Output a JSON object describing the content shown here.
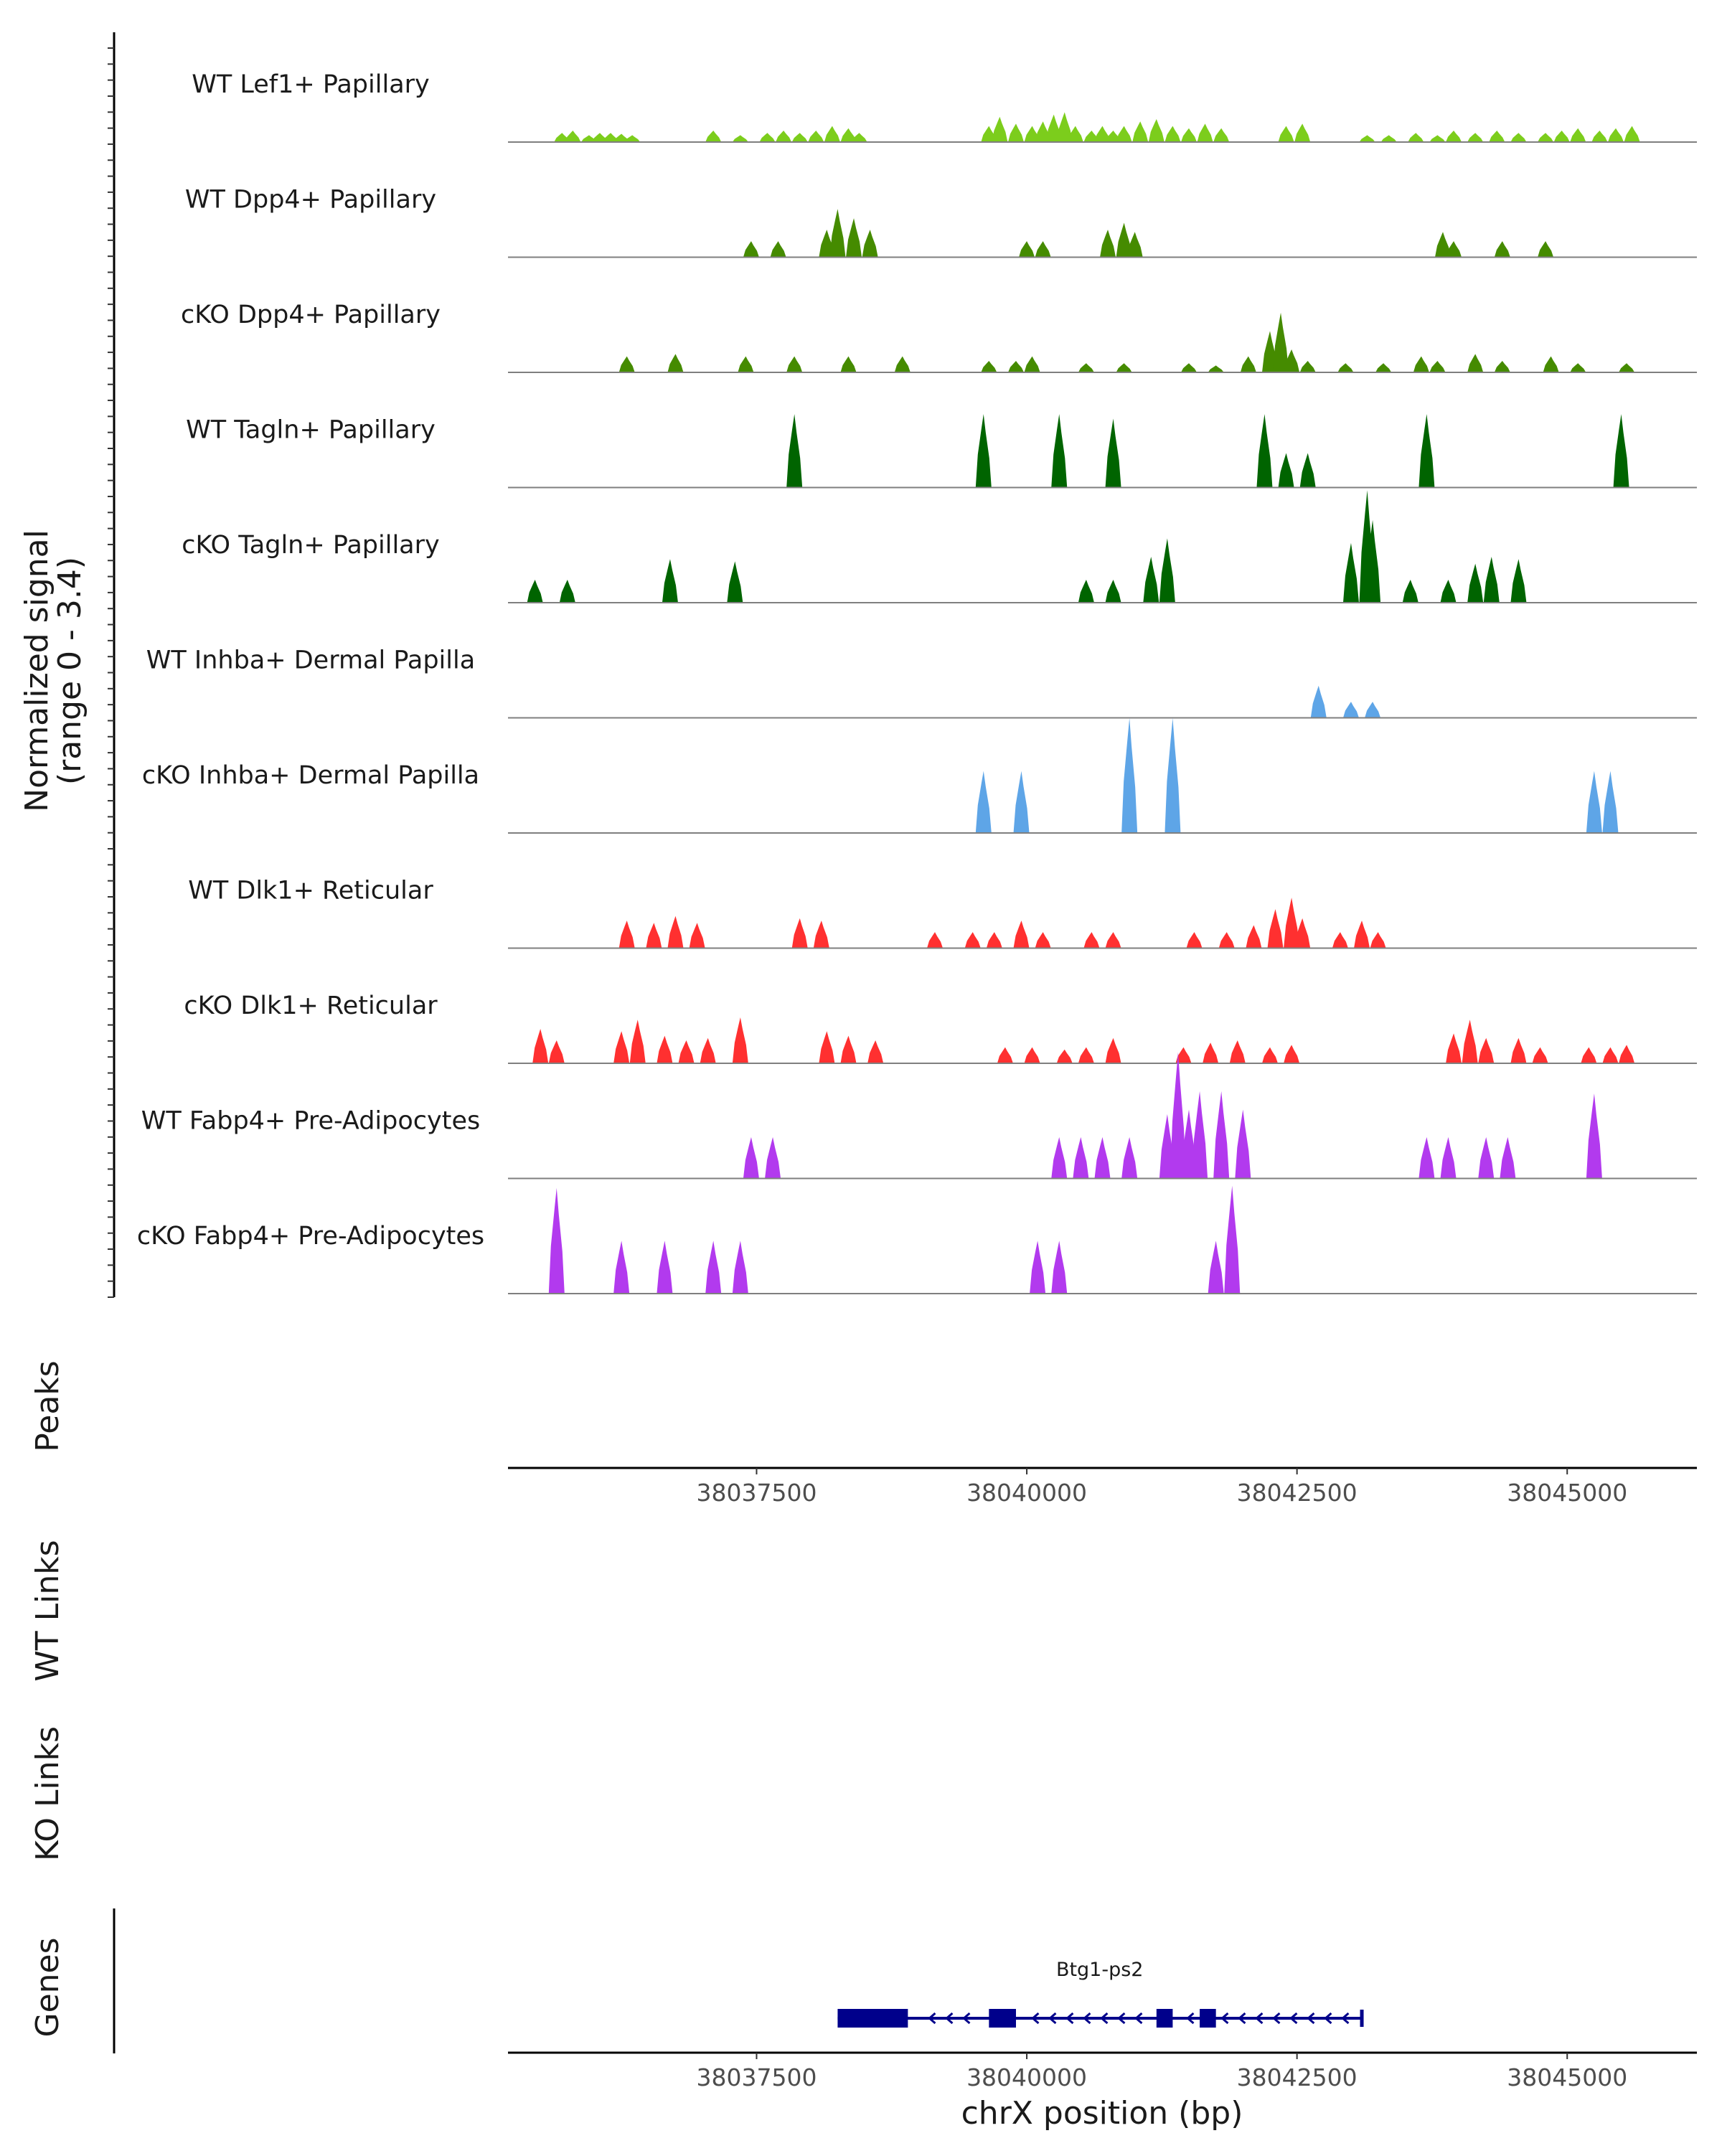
{
  "chart_data": {
    "type": "area",
    "title": "",
    "region": {
      "chrom": "chrX",
      "start": 38035200,
      "end": 38046200
    },
    "y_axis_title_line1": "Normalized signal",
    "y_axis_title_line2": "(range 0 - 3.4)",
    "ylim": [
      0,
      3.4
    ],
    "xlabel": "chrX position (bp)",
    "x_ticks": [
      {
        "value": 38037500,
        "label": "38037500"
      },
      {
        "value": 38040000,
        "label": "38040000"
      },
      {
        "value": 38042500,
        "label": "38042500"
      },
      {
        "value": 38045000,
        "label": "38045000"
      }
    ],
    "peaks_label": "Peaks",
    "wt_links_label": "WT Links",
    "ko_links_label": "KO Links",
    "genes_label": "Genes",
    "tracks": [
      {
        "name": "WT Lef1+ Papillary",
        "color": "#7CCD1C",
        "peaks": [
          [
            38035700,
            0.2
          ],
          [
            38035800,
            0.25
          ],
          [
            38035950,
            0.15
          ],
          [
            38036050,
            0.2
          ],
          [
            38036150,
            0.2
          ],
          [
            38036250,
            0.18
          ],
          [
            38036350,
            0.15
          ],
          [
            38037100,
            0.25
          ],
          [
            38037350,
            0.15
          ],
          [
            38037600,
            0.2
          ],
          [
            38037750,
            0.25
          ],
          [
            38037900,
            0.2
          ],
          [
            38038050,
            0.25
          ],
          [
            38038200,
            0.35
          ],
          [
            38038350,
            0.3
          ],
          [
            38038450,
            0.2
          ],
          [
            38039650,
            0.35
          ],
          [
            38039750,
            0.55
          ],
          [
            38039900,
            0.4
          ],
          [
            38040050,
            0.35
          ],
          [
            38040150,
            0.45
          ],
          [
            38040250,
            0.6
          ],
          [
            38040350,
            0.65
          ],
          [
            38040450,
            0.35
          ],
          [
            38040600,
            0.25
          ],
          [
            38040700,
            0.35
          ],
          [
            38040800,
            0.25
          ],
          [
            38040900,
            0.35
          ],
          [
            38041050,
            0.45
          ],
          [
            38041200,
            0.5
          ],
          [
            38041350,
            0.35
          ],
          [
            38041500,
            0.3
          ],
          [
            38041650,
            0.4
          ],
          [
            38041800,
            0.3
          ],
          [
            38042400,
            0.35
          ],
          [
            38042550,
            0.4
          ],
          [
            38043150,
            0.15
          ],
          [
            38043350,
            0.15
          ],
          [
            38043600,
            0.2
          ],
          [
            38043800,
            0.15
          ],
          [
            38043950,
            0.25
          ],
          [
            38044150,
            0.2
          ],
          [
            38044350,
            0.25
          ],
          [
            38044550,
            0.2
          ],
          [
            38044800,
            0.2
          ],
          [
            38044950,
            0.25
          ],
          [
            38045100,
            0.3
          ],
          [
            38045300,
            0.25
          ],
          [
            38045450,
            0.3
          ],
          [
            38045600,
            0.35
          ]
        ]
      },
      {
        "name": "WT Dpp4+ Papillary",
        "color": "#458B00",
        "peaks": [
          [
            38037450,
            0.35
          ],
          [
            38037700,
            0.35
          ],
          [
            38038150,
            0.6
          ],
          [
            38038250,
            1.05
          ],
          [
            38038400,
            0.85
          ],
          [
            38038550,
            0.6
          ],
          [
            38040000,
            0.35
          ],
          [
            38040150,
            0.35
          ],
          [
            38040750,
            0.6
          ],
          [
            38040900,
            0.75
          ],
          [
            38041000,
            0.55
          ],
          [
            38043850,
            0.55
          ],
          [
            38043950,
            0.35
          ],
          [
            38044400,
            0.35
          ],
          [
            38044800,
            0.35
          ]
        ]
      },
      {
        "name": "cKO Dpp4+ Papillary",
        "color": "#458B00",
        "peaks": [
          [
            38036300,
            0.35
          ],
          [
            38036750,
            0.4
          ],
          [
            38037400,
            0.35
          ],
          [
            38037850,
            0.35
          ],
          [
            38038350,
            0.35
          ],
          [
            38038850,
            0.35
          ],
          [
            38039650,
            0.25
          ],
          [
            38039900,
            0.25
          ],
          [
            38040050,
            0.35
          ],
          [
            38040550,
            0.2
          ],
          [
            38040900,
            0.2
          ],
          [
            38041500,
            0.2
          ],
          [
            38041750,
            0.15
          ],
          [
            38042050,
            0.35
          ],
          [
            38042250,
            0.9
          ],
          [
            38042350,
            1.3
          ],
          [
            38042450,
            0.5
          ],
          [
            38042600,
            0.25
          ],
          [
            38042950,
            0.2
          ],
          [
            38043300,
            0.2
          ],
          [
            38043650,
            0.35
          ],
          [
            38043800,
            0.25
          ],
          [
            38044150,
            0.4
          ],
          [
            38044400,
            0.25
          ],
          [
            38044850,
            0.35
          ],
          [
            38045100,
            0.2
          ],
          [
            38045550,
            0.2
          ]
        ]
      },
      {
        "name": "WT Tagln+ Papillary",
        "color": "#006400",
        "peaks": [
          [
            38037850,
            1.6
          ],
          [
            38039600,
            1.6
          ],
          [
            38040300,
            1.6
          ],
          [
            38040800,
            1.5
          ],
          [
            38042200,
            1.6
          ],
          [
            38042400,
            0.75
          ],
          [
            38042600,
            0.75
          ],
          [
            38043700,
            1.6
          ],
          [
            38045500,
            1.6
          ]
        ]
      },
      {
        "name": "cKO Tagln+ Papillary",
        "color": "#006400",
        "peaks": [
          [
            38035450,
            0.5
          ],
          [
            38035750,
            0.5
          ],
          [
            38036700,
            0.95
          ],
          [
            38037300,
            0.9
          ],
          [
            38040550,
            0.5
          ],
          [
            38040800,
            0.5
          ],
          [
            38041150,
            1.0
          ],
          [
            38041300,
            1.4
          ],
          [
            38043000,
            1.3
          ],
          [
            38043150,
            2.45
          ],
          [
            38043200,
            1.8
          ],
          [
            38043550,
            0.5
          ],
          [
            38043900,
            0.5
          ],
          [
            38044150,
            0.85
          ],
          [
            38044300,
            1.0
          ],
          [
            38044550,
            0.95
          ]
        ]
      },
      {
        "name": "WT Inhba+ Dermal Papilla",
        "color": "#5EA5E7",
        "peaks": [
          [
            38042700,
            0.7
          ],
          [
            38043000,
            0.35
          ],
          [
            38043200,
            0.35
          ]
        ]
      },
      {
        "name": "cKO Inhba+ Dermal Papilla",
        "color": "#5EA5E7",
        "peaks": [
          [
            38039600,
            1.35
          ],
          [
            38039950,
            1.35
          ],
          [
            38040950,
            2.5
          ],
          [
            38041350,
            2.5
          ],
          [
            38045250,
            1.35
          ],
          [
            38045400,
            1.35
          ]
        ]
      },
      {
        "name": "WT Dlk1+ Reticular",
        "color": "#FF3030",
        "peaks": [
          [
            38036300,
            0.6
          ],
          [
            38036550,
            0.55
          ],
          [
            38036750,
            0.7
          ],
          [
            38036950,
            0.55
          ],
          [
            38037900,
            0.65
          ],
          [
            38038100,
            0.6
          ],
          [
            38039150,
            0.35
          ],
          [
            38039500,
            0.35
          ],
          [
            38039700,
            0.35
          ],
          [
            38039950,
            0.6
          ],
          [
            38040150,
            0.35
          ],
          [
            38040600,
            0.35
          ],
          [
            38040800,
            0.35
          ],
          [
            38041550,
            0.35
          ],
          [
            38041850,
            0.35
          ],
          [
            38042100,
            0.5
          ],
          [
            38042300,
            0.85
          ],
          [
            38042450,
            1.1
          ],
          [
            38042550,
            0.65
          ],
          [
            38042900,
            0.35
          ],
          [
            38043100,
            0.6
          ],
          [
            38043250,
            0.35
          ]
        ]
      },
      {
        "name": "cKO Dlk1+ Reticular",
        "color": "#FF3030",
        "peaks": [
          [
            38035500,
            0.75
          ],
          [
            38035650,
            0.5
          ],
          [
            38036250,
            0.7
          ],
          [
            38036400,
            0.95
          ],
          [
            38036650,
            0.6
          ],
          [
            38036850,
            0.5
          ],
          [
            38037050,
            0.55
          ],
          [
            38037350,
            1.0
          ],
          [
            38038150,
            0.7
          ],
          [
            38038350,
            0.6
          ],
          [
            38038600,
            0.5
          ],
          [
            38039800,
            0.35
          ],
          [
            38040050,
            0.35
          ],
          [
            38040350,
            0.3
          ],
          [
            38040550,
            0.35
          ],
          [
            38040800,
            0.55
          ],
          [
            38041450,
            0.35
          ],
          [
            38041700,
            0.45
          ],
          [
            38041950,
            0.5
          ],
          [
            38042250,
            0.35
          ],
          [
            38042450,
            0.4
          ],
          [
            38043950,
            0.65
          ],
          [
            38044100,
            0.95
          ],
          [
            38044250,
            0.55
          ],
          [
            38044550,
            0.55
          ],
          [
            38044750,
            0.35
          ],
          [
            38045200,
            0.35
          ],
          [
            38045400,
            0.35
          ],
          [
            38045550,
            0.4
          ]
        ]
      },
      {
        "name": "WT Fabp4+ Pre-Adipocytes",
        "color": "#B23AEE",
        "peaks": [
          [
            38037450,
            0.9
          ],
          [
            38037650,
            0.9
          ],
          [
            38040300,
            0.9
          ],
          [
            38040500,
            0.9
          ],
          [
            38040700,
            0.9
          ],
          [
            38040950,
            0.9
          ],
          [
            38041300,
            1.4
          ],
          [
            38041400,
            2.75
          ],
          [
            38041500,
            1.5
          ],
          [
            38041600,
            1.9
          ],
          [
            38041800,
            1.9
          ],
          [
            38042000,
            1.5
          ],
          [
            38043700,
            0.9
          ],
          [
            38043900,
            0.9
          ],
          [
            38044250,
            0.9
          ],
          [
            38044450,
            0.9
          ],
          [
            38045250,
            1.85
          ]
        ]
      },
      {
        "name": "cKO Fabp4+ Pre-Adipocytes",
        "color": "#B23AEE",
        "peaks": [
          [
            38035650,
            2.3
          ],
          [
            38036250,
            1.15
          ],
          [
            38036650,
            1.15
          ],
          [
            38037100,
            1.15
          ],
          [
            38037350,
            1.15
          ],
          [
            38040100,
            1.15
          ],
          [
            38040300,
            1.15
          ],
          [
            38041750,
            1.15
          ],
          [
            38041900,
            2.35
          ]
        ]
      }
    ],
    "gene": {
      "name": "Btg1-ps2",
      "start": 38038250,
      "end": 38043100,
      "strand": "-",
      "exons": [
        [
          38038250,
          38038900
        ],
        [
          38039650,
          38039900
        ],
        [
          38041200,
          38041350
        ],
        [
          38041600,
          38041750
        ]
      ],
      "color": "#00008B"
    }
  }
}
